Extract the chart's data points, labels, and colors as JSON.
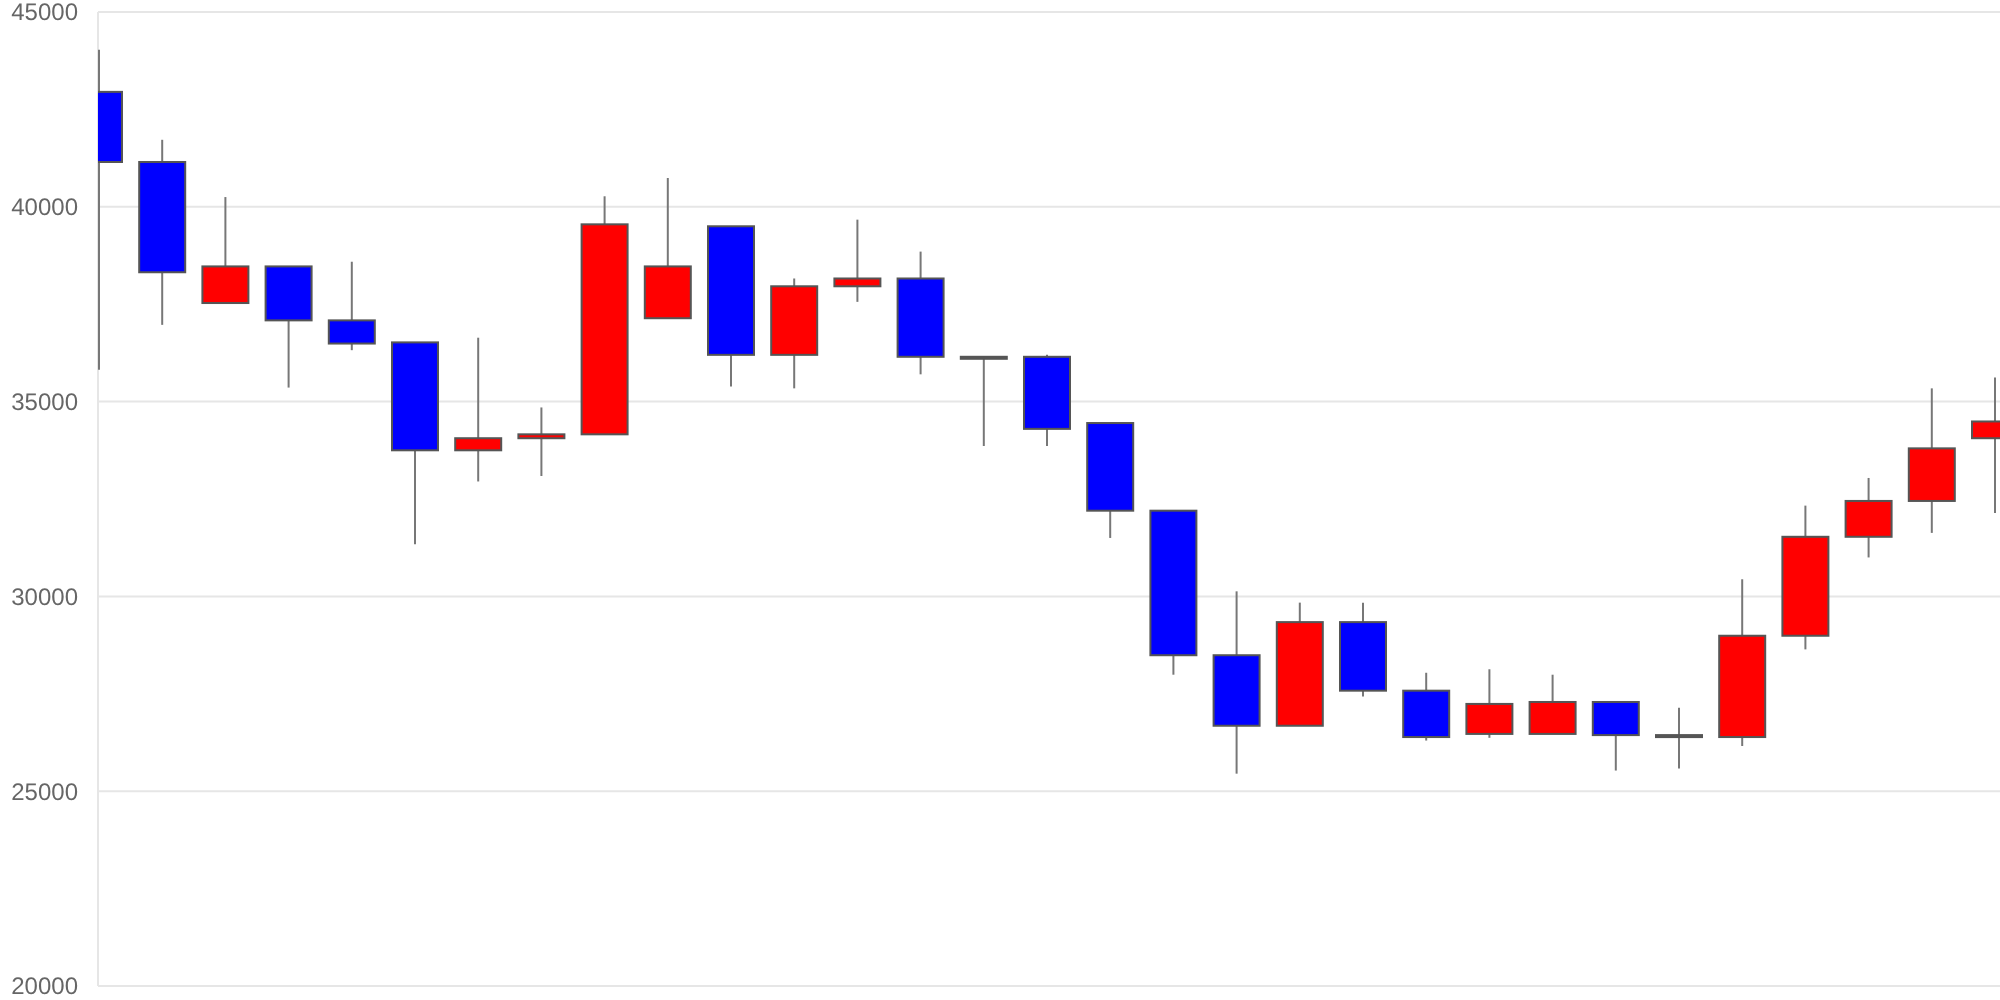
{
  "chart_data": {
    "type": "candlestick",
    "categories": [
      null,
      null,
      null,
      null,
      null,
      null,
      null,
      null,
      null,
      null,
      null,
      null,
      null,
      null,
      null,
      null,
      null,
      null,
      null,
      null,
      null,
      null,
      null,
      null,
      null,
      null,
      null,
      null,
      null,
      null,
      null
    ],
    "ohlc": [
      [
        42950,
        44030,
        35820,
        41150
      ],
      [
        41150,
        41720,
        36970,
        38320
      ],
      [
        37530,
        40250,
        37530,
        38470
      ],
      [
        38470,
        38470,
        35360,
        37085
      ],
      [
        37085,
        38590,
        36320,
        36490
      ],
      [
        36520,
        36520,
        31340,
        33750
      ],
      [
        33750,
        36640,
        32950,
        34060
      ],
      [
        34060,
        34850,
        33090,
        34160
      ],
      [
        34160,
        40270,
        34160,
        39550
      ],
      [
        37140,
        40740,
        37140,
        38470
      ],
      [
        39500,
        39500,
        35390,
        36200
      ],
      [
        36200,
        38160,
        35340,
        37960
      ],
      [
        37960,
        39670,
        37560,
        38160
      ],
      [
        38160,
        38850,
        35700,
        36150
      ],
      [
        36150,
        36150,
        33860,
        36130
      ],
      [
        36150,
        36200,
        33860,
        34300
      ],
      [
        34450,
        34450,
        31500,
        32200
      ],
      [
        32200,
        32200,
        27990,
        28490
      ],
      [
        28490,
        30130,
        25450,
        26680
      ],
      [
        26680,
        29840,
        26680,
        29340
      ],
      [
        29340,
        29840,
        27430,
        27580
      ],
      [
        27580,
        28040,
        26300,
        26390
      ],
      [
        26470,
        28130,
        26370,
        27240
      ],
      [
        26470,
        27990,
        26470,
        27290
      ],
      [
        27290,
        27290,
        25530,
        26440
      ],
      [
        26440,
        27140,
        25580,
        26420
      ],
      [
        26390,
        30440,
        26160,
        28990
      ],
      [
        28990,
        32330,
        28640,
        31530
      ],
      [
        31530,
        33040,
        31000,
        32450
      ],
      [
        32450,
        35340,
        31630,
        33800
      ],
      [
        34060,
        35620,
        32140,
        34490
      ]
    ],
    "colors": [
      "#0000ff",
      "#0000ff",
      "#ff0000",
      "#0000ff",
      "#0000ff",
      "#0000ff",
      "#ff0000",
      "#ff0000",
      "#ff0000",
      "#ff0000",
      "#0000ff",
      "#ff0000",
      "#ff0000",
      "#0000ff",
      "#0000ff",
      "#0000ff",
      "#0000ff",
      "#0000ff",
      "#0000ff",
      "#ff0000",
      "#0000ff",
      "#0000ff",
      "#ff0000",
      "#ff0000",
      "#0000ff",
      "#0000ff",
      "#ff0000",
      "#ff0000",
      "#ff0000",
      "#ff0000",
      "#ff0000"
    ],
    "ylim": [
      20000,
      45000
    ],
    "yticks": [
      20000,
      25000,
      30000,
      35000,
      40000,
      45000
    ],
    "grid": "y",
    "tick_labels": "y"
  }
}
